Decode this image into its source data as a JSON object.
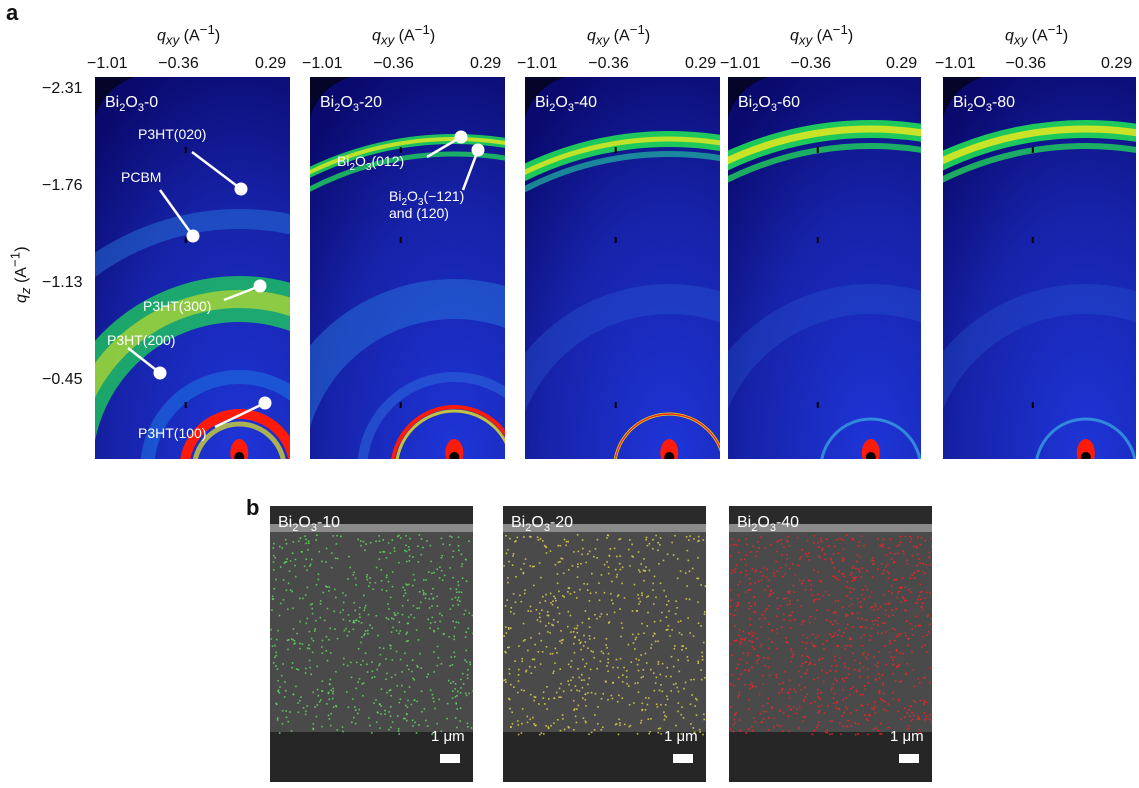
{
  "panel_a": {
    "letter": "a",
    "x_axis_title": {
      "var": "q",
      "sub": "xy",
      "unit": " (A",
      "exp": "−1",
      "close": ")"
    },
    "x_ticks": [
      "−1.01",
      "−0.36",
      "0.29"
    ],
    "y_axis_title": {
      "var": "q",
      "sub": "z",
      "unit": " (A",
      "exp": "−1",
      "close": ")"
    },
    "y_ticks": [
      "−2.31",
      "−1.76",
      "−1.13",
      "−0.45"
    ],
    "samples": [
      {
        "pre": "Bi",
        "s1": "2",
        "mid": "O",
        "s2": "3",
        "post": "-0"
      },
      {
        "pre": "Bi",
        "s1": "2",
        "mid": "O",
        "s2": "3",
        "post": "-20"
      },
      {
        "pre": "Bi",
        "s1": "2",
        "mid": "O",
        "s2": "3",
        "post": "-40"
      },
      {
        "pre": "Bi",
        "s1": "2",
        "mid": "O",
        "s2": "3",
        "post": "-60"
      },
      {
        "pre": "Bi",
        "s1": "2",
        "mid": "O",
        "s2": "3",
        "post": "-80"
      }
    ],
    "annotations": {
      "p3ht_020": "P3HT(020)",
      "pcbm": "PCBM",
      "p3ht_300": "P3HT(300)",
      "p3ht_200": "P3HT(200)",
      "p3ht_100": "P3HT(100)",
      "bi_012": {
        "pre": "Bi",
        "s1": "2",
        "mid": "O",
        "s2": "3",
        "post": "(012)"
      },
      "bi_121_line1": {
        "pre": "Bi",
        "s1": "2",
        "mid": "O",
        "s2": "3",
        "post": "(−121)"
      },
      "bi_121_line2": "and (120)"
    },
    "colormap": [
      "#0a0a6e",
      "#1e35d8",
      "#1fd35a",
      "#e8e81e",
      "#ff1a0a"
    ]
  },
  "panel_b": {
    "letter": "b",
    "images": [
      {
        "pre": "Bi",
        "s1": "2",
        "mid": "O",
        "s2": "3",
        "post": "-10",
        "dot_color": "#5fdc5f"
      },
      {
        "pre": "Bi",
        "s1": "2",
        "mid": "O",
        "s2": "3",
        "post": "-20",
        "dot_color": "#e0d24a"
      },
      {
        "pre": "Bi",
        "s1": "2",
        "mid": "O",
        "s2": "3",
        "post": "-40",
        "dot_color": "#ff2020"
      }
    ],
    "scale_label": "1 μm"
  }
}
